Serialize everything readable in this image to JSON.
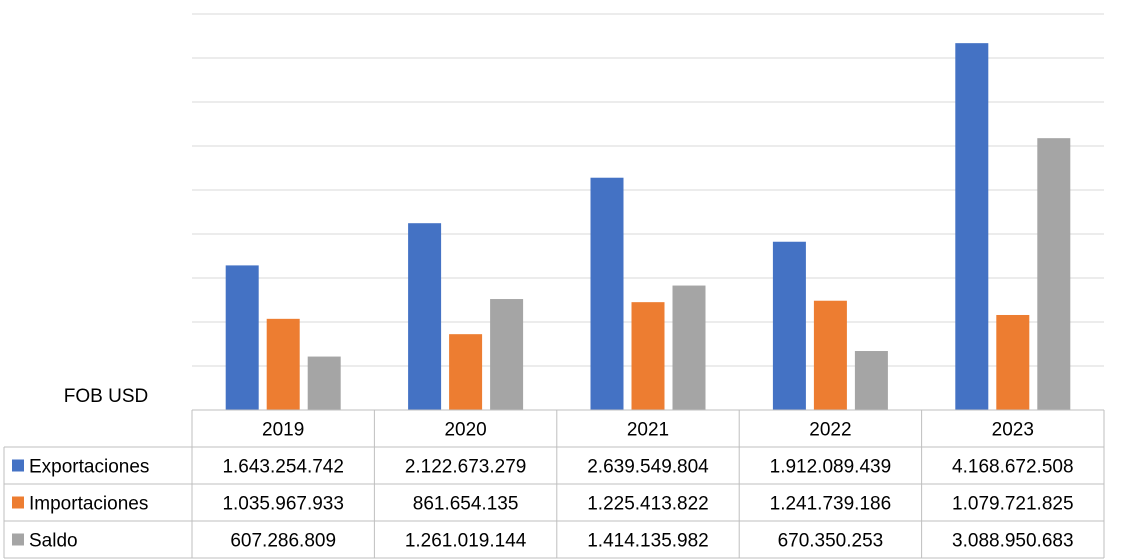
{
  "chart_data": {
    "type": "bar",
    "unit_label": "FOB USD",
    "categories": [
      "2019",
      "2020",
      "2021",
      "2022",
      "2023"
    ],
    "ylim": [
      0,
      4500000000
    ],
    "grid": true,
    "series": [
      {
        "name": "Exportaciones",
        "color": "#4472C4",
        "values": [
          1643254742,
          2122673279,
          2639549804,
          1912089439,
          4168672508
        ],
        "labels": [
          "1.643.254.742",
          "2.122.673.279",
          "2.639.549.804",
          "1.912.089.439",
          "4.168.672.508"
        ]
      },
      {
        "name": "Importaciones",
        "color": "#ED7D31",
        "values": [
          1035967933,
          861654135,
          1225413822,
          1241739186,
          1079721825
        ],
        "labels": [
          "1.035.967.933",
          "861.654.135",
          "1.225.413.822",
          "1.241.739.186",
          "1.079.721.825"
        ]
      },
      {
        "name": "Saldo",
        "color": "#A5A5A5",
        "values": [
          607286809,
          1261019144,
          1414135982,
          670350253,
          3088950683
        ],
        "labels": [
          "607.286.809",
          "1.261.019.144",
          "1.414.135.982",
          "670.350.253",
          "3.088.950.683"
        ]
      }
    ]
  }
}
